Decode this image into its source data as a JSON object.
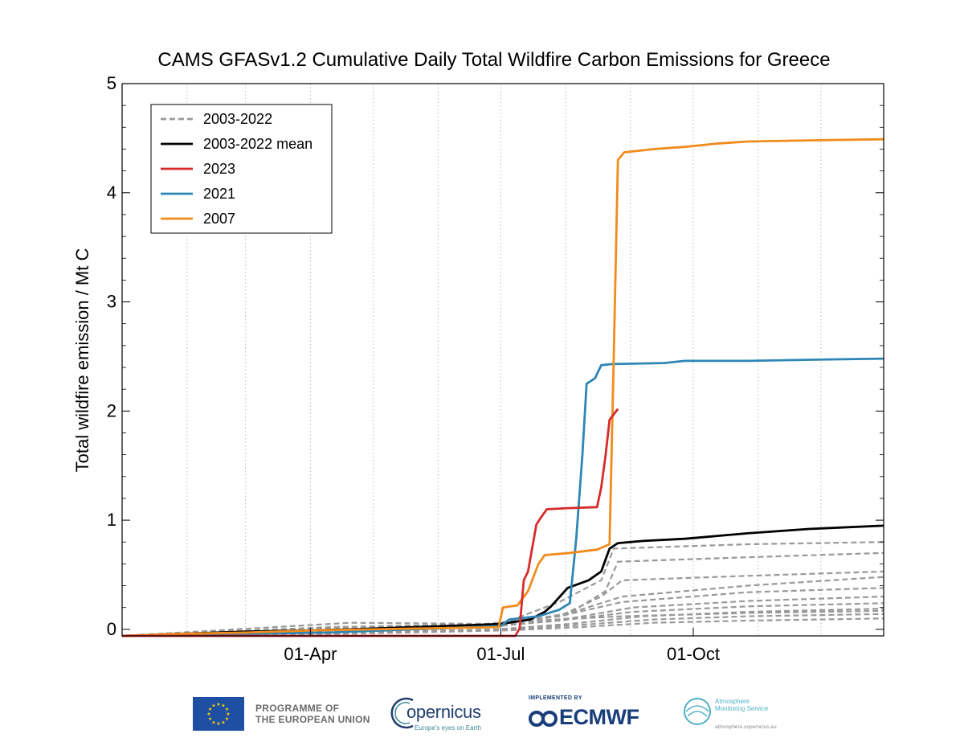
{
  "chart_data": {
    "type": "line",
    "title": "CAMS GFASv1.2 Cumulative Daily Total Wildfire Carbon Emissions for Greece",
    "xlabel": "",
    "ylabel": "Total wildfire emission / Mt C",
    "xlim": [
      1,
      365
    ],
    "ylim": [
      -0.06,
      5
    ],
    "yticks": [
      0,
      1,
      2,
      3,
      4,
      5
    ],
    "xticks": [
      {
        "day": 91,
        "label": "01-Apr"
      },
      {
        "day": 182,
        "label": "01-Jul"
      },
      {
        "day": 274,
        "label": "01-Oct"
      }
    ],
    "xgrid_days": [
      32,
      60,
      91,
      121,
      152,
      182,
      213,
      244,
      274,
      305,
      335
    ],
    "legend_position": "top-left",
    "legend": [
      {
        "label": "2003-2022",
        "color": "#999999",
        "dash": true
      },
      {
        "label": "2003-2022 mean",
        "color": "#000000",
        "dash": false
      },
      {
        "label": "2023",
        "color": "#d62b2b",
        "dash": false
      },
      {
        "label": "2021",
        "color": "#2e86b5",
        "dash": false
      },
      {
        "label": "2007",
        "color": "#f08c1c",
        "dash": false
      }
    ],
    "series": [
      {
        "name": "2003-2022 mean",
        "color": "#000000",
        "points": [
          [
            1,
            -0.06
          ],
          [
            30,
            -0.04
          ],
          [
            60,
            -0.02
          ],
          [
            91,
            -0.01
          ],
          [
            110,
            0.0
          ],
          [
            140,
            0.02
          ],
          [
            170,
            0.04
          ],
          [
            182,
            0.05
          ],
          [
            196,
            0.09
          ],
          [
            203,
            0.16
          ],
          [
            206,
            0.21
          ],
          [
            214,
            0.38
          ],
          [
            224,
            0.45
          ],
          [
            230,
            0.53
          ],
          [
            234,
            0.74
          ],
          [
            238,
            0.79
          ],
          [
            250,
            0.81
          ],
          [
            270,
            0.83
          ],
          [
            300,
            0.88
          ],
          [
            330,
            0.92
          ],
          [
            365,
            0.95
          ]
        ]
      },
      {
        "name": "2023",
        "color": "#d62b2b",
        "points": [
          [
            1,
            -0.06
          ],
          [
            189,
            -0.06
          ],
          [
            191,
            0.01
          ],
          [
            193,
            0.45
          ],
          [
            195,
            0.53
          ],
          [
            199,
            0.96
          ],
          [
            201,
            1.02
          ],
          [
            204,
            1.1
          ],
          [
            214,
            1.11
          ],
          [
            228,
            1.12
          ],
          [
            230,
            1.3
          ],
          [
            232,
            1.58
          ],
          [
            234,
            1.92
          ],
          [
            238,
            2.02
          ]
        ]
      },
      {
        "name": "2021",
        "color": "#2e86b5",
        "points": [
          [
            1,
            -0.06
          ],
          [
            30,
            -0.05
          ],
          [
            60,
            -0.04
          ],
          [
            100,
            -0.03
          ],
          [
            140,
            0.0
          ],
          [
            182,
            0.03
          ],
          [
            186,
            0.09
          ],
          [
            200,
            0.12
          ],
          [
            210,
            0.18
          ],
          [
            215,
            0.24
          ],
          [
            218,
            0.82
          ],
          [
            221,
            1.6
          ],
          [
            223,
            2.25
          ],
          [
            227,
            2.3
          ],
          [
            230,
            2.42
          ],
          [
            235,
            2.43
          ],
          [
            260,
            2.44
          ],
          [
            270,
            2.46
          ],
          [
            300,
            2.46
          ],
          [
            330,
            2.47
          ],
          [
            365,
            2.48
          ]
        ]
      },
      {
        "name": "2007",
        "color": "#f08c1c",
        "points": [
          [
            1,
            -0.06
          ],
          [
            30,
            -0.04
          ],
          [
            60,
            -0.03
          ],
          [
            91,
            -0.01
          ],
          [
            120,
            0.0
          ],
          [
            150,
            0.01
          ],
          [
            181,
            0.02
          ],
          [
            183,
            0.2
          ],
          [
            190,
            0.22
          ],
          [
            195,
            0.35
          ],
          [
            200,
            0.6
          ],
          [
            203,
            0.68
          ],
          [
            215,
            0.7
          ],
          [
            228,
            0.73
          ],
          [
            234,
            0.78
          ],
          [
            236,
            2.5
          ],
          [
            238,
            4.3
          ],
          [
            241,
            4.37
          ],
          [
            255,
            4.4
          ],
          [
            270,
            4.42
          ],
          [
            285,
            4.45
          ],
          [
            300,
            4.47
          ],
          [
            330,
            4.48
          ],
          [
            365,
            4.49
          ]
        ]
      },
      {
        "name": "2003-2022",
        "color": "#999999",
        "dash": true,
        "points": [
          [
            1,
            -0.06
          ],
          [
            40,
            -0.03
          ],
          [
            100,
            0.02
          ],
          [
            182,
            0.05
          ],
          [
            210,
            0.25
          ],
          [
            230,
            0.45
          ],
          [
            236,
            0.74
          ],
          [
            300,
            0.78
          ],
          [
            365,
            0.8
          ]
        ]
      },
      {
        "name": "2003-2022",
        "color": "#999999",
        "dash": true,
        "points": [
          [
            1,
            -0.06
          ],
          [
            60,
            -0.03
          ],
          [
            120,
            0.01
          ],
          [
            182,
            0.04
          ],
          [
            215,
            0.15
          ],
          [
            232,
            0.35
          ],
          [
            238,
            0.62
          ],
          [
            300,
            0.66
          ],
          [
            365,
            0.7
          ]
        ]
      },
      {
        "name": "2003-2022",
        "color": "#999999",
        "dash": true,
        "points": [
          [
            1,
            -0.06
          ],
          [
            100,
            -0.02
          ],
          [
            170,
            0.02
          ],
          [
            210,
            0.12
          ],
          [
            230,
            0.3
          ],
          [
            240,
            0.45
          ],
          [
            300,
            0.49
          ],
          [
            365,
            0.53
          ]
        ]
      },
      {
        "name": "2003-2022",
        "color": "#999999",
        "dash": true,
        "points": [
          [
            1,
            -0.06
          ],
          [
            110,
            -0.02
          ],
          [
            180,
            0.03
          ],
          [
            215,
            0.15
          ],
          [
            240,
            0.3
          ],
          [
            300,
            0.4
          ],
          [
            365,
            0.48
          ]
        ]
      },
      {
        "name": "2003-2022",
        "color": "#999999",
        "dash": true,
        "points": [
          [
            1,
            -0.06
          ],
          [
            100,
            0.0
          ],
          [
            170,
            0.04
          ],
          [
            210,
            0.12
          ],
          [
            240,
            0.25
          ],
          [
            300,
            0.34
          ],
          [
            365,
            0.38
          ]
        ]
      },
      {
        "name": "2003-2022",
        "color": "#999999",
        "dash": true,
        "points": [
          [
            1,
            -0.06
          ],
          [
            110,
            0.02
          ],
          [
            180,
            0.05
          ],
          [
            215,
            0.1
          ],
          [
            245,
            0.2
          ],
          [
            300,
            0.26
          ],
          [
            365,
            0.3
          ]
        ]
      },
      {
        "name": "2003-2022",
        "color": "#999999",
        "dash": true,
        "points": [
          [
            1,
            -0.06
          ],
          [
            90,
            -0.02
          ],
          [
            175,
            0.02
          ],
          [
            210,
            0.08
          ],
          [
            245,
            0.16
          ],
          [
            300,
            0.21
          ],
          [
            365,
            0.24
          ]
        ]
      },
      {
        "name": "2003-2022",
        "color": "#999999",
        "dash": true,
        "points": [
          [
            1,
            -0.06
          ],
          [
            100,
            -0.03
          ],
          [
            180,
            0.0
          ],
          [
            215,
            0.05
          ],
          [
            250,
            0.12
          ],
          [
            300,
            0.16
          ],
          [
            365,
            0.19
          ]
        ]
      },
      {
        "name": "2003-2022",
        "color": "#999999",
        "dash": true,
        "points": [
          [
            1,
            -0.06
          ],
          [
            100,
            -0.03
          ],
          [
            185,
            0.0
          ],
          [
            220,
            0.04
          ],
          [
            255,
            0.09
          ],
          [
            300,
            0.12
          ],
          [
            365,
            0.14
          ]
        ]
      },
      {
        "name": "2003-2022",
        "color": "#999999",
        "dash": true,
        "points": [
          [
            1,
            -0.06
          ],
          [
            110,
            -0.04
          ],
          [
            185,
            -0.01
          ],
          [
            220,
            0.02
          ],
          [
            255,
            0.06
          ],
          [
            300,
            0.08
          ],
          [
            365,
            0.1
          ]
        ]
      },
      {
        "name": "2003-2022",
        "color": "#999999",
        "dash": true,
        "points": [
          [
            1,
            -0.06
          ],
          [
            110,
            0.06
          ],
          [
            180,
            0.05
          ],
          [
            200,
            0.08
          ],
          [
            240,
            0.12
          ],
          [
            300,
            0.15
          ],
          [
            365,
            0.17
          ]
        ]
      }
    ]
  },
  "footer": {
    "eu_line1": "PROGRAMME OF",
    "eu_line2": "THE EUROPEAN UNION",
    "copernicus_name": "opernicus",
    "copernicus_tagline": "Europe's eyes on Earth",
    "ecmwf_implemented": "IMPLEMENTED BY",
    "ecmwf_name": "ECMWF",
    "cams_line1": "Atmosphere",
    "cams_line2": "Monitoring Service",
    "cams_url": "atmosphere.copernicus.eu"
  }
}
